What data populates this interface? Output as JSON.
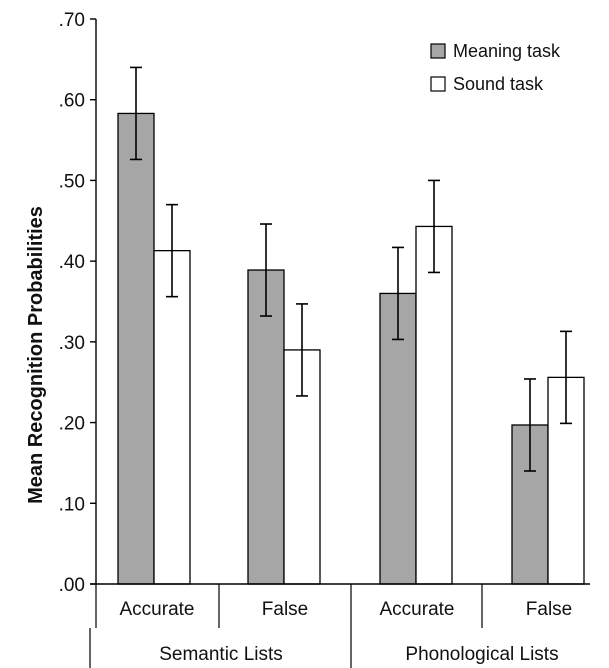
{
  "chart_data": {
    "type": "bar",
    "ylabel": "Mean Recognition Probabilities",
    "ylim": [
      0,
      0.7
    ],
    "yticks": [
      ".00",
      ".10",
      ".20",
      ".30",
      ".40",
      ".50",
      ".60",
      ".70"
    ],
    "groups": [
      "Semantic Lists",
      "Phonological Lists"
    ],
    "categories": [
      "Accurate",
      "False",
      "Accurate",
      "False"
    ],
    "legend_position": "top-right",
    "grid": false,
    "series": [
      {
        "name": "Meaning task",
        "color": "#a6a6a6",
        "values": [
          0.583,
          0.389,
          0.36,
          0.197
        ],
        "err_low": [
          0.526,
          0.332,
          0.303,
          0.14
        ],
        "err_high": [
          0.64,
          0.446,
          0.417,
          0.254
        ]
      },
      {
        "name": "Sound task",
        "color": "#ffffff",
        "values": [
          0.413,
          0.29,
          0.443,
          0.256
        ],
        "err_low": [
          0.356,
          0.233,
          0.386,
          0.199
        ],
        "err_high": [
          0.47,
          0.347,
          0.5,
          0.313
        ]
      }
    ]
  }
}
